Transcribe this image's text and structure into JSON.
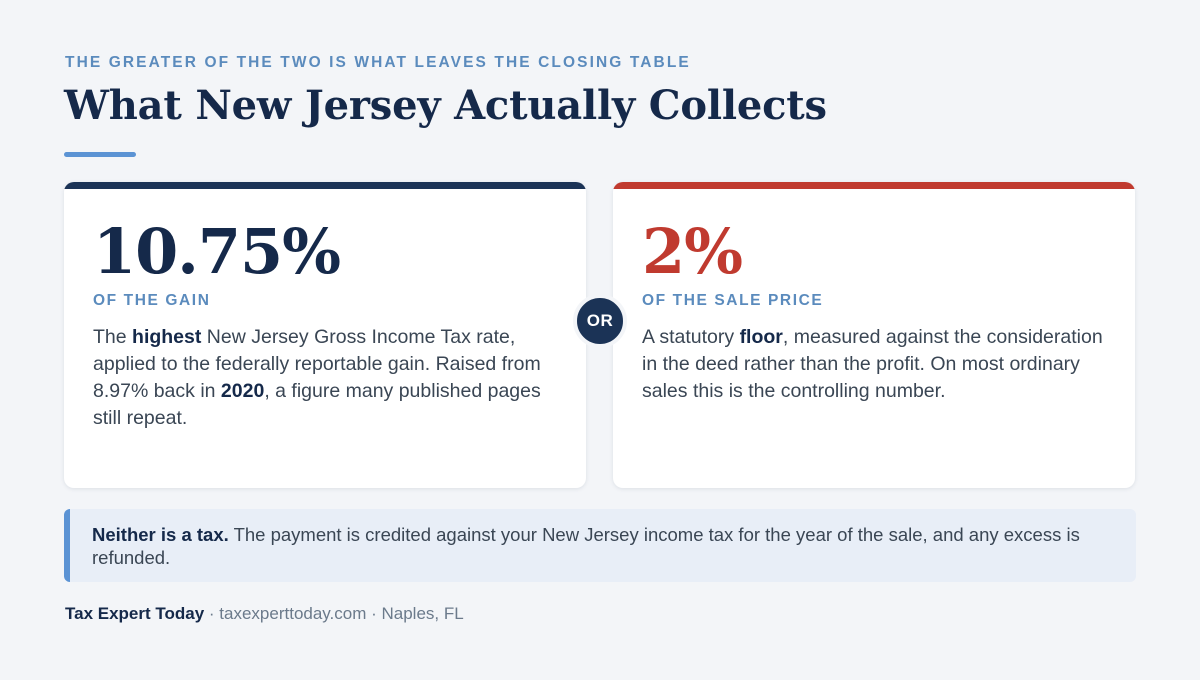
{
  "header": {
    "eyebrow": "THE GREATER OF THE TWO IS WHAT LEAVES THE CLOSING TABLE",
    "title": "What New Jersey Actually Collects"
  },
  "colors": {
    "navy": "#15294a",
    "red": "#c03a2f",
    "accent_blue": "#5b93d4",
    "label_blue": "#5b8bbd"
  },
  "cards": {
    "left": {
      "big_value": "10.75%",
      "sub_label": "OF THE GAIN",
      "desc": {
        "p1": "The ",
        "b1": "highest",
        "p2": " New Jersey Gross Income Tax rate, applied to the federally reportable gain. Raised from 8.97% back in ",
        "b2": "2020",
        "p3": ", a figure many published pages still repeat."
      }
    },
    "right": {
      "big_value": "2%",
      "sub_label": "OF THE SALE PRICE",
      "desc": {
        "p1": "A statutory ",
        "b1": "floor",
        "p2": ", measured against the consideration in the deed rather than the profit. On most ordinary sales this is the controlling number."
      }
    }
  },
  "or_label": "OR",
  "note": {
    "bold": "Neither is a tax.",
    "text": " The payment is credited against your New Jersey income tax for the year of the sale, and any excess is refunded."
  },
  "footer": {
    "brand": "Tax Expert Today",
    "sep1": " · ",
    "site": "taxexperttoday.com",
    "sep2": " · ",
    "location": "Naples, FL"
  }
}
